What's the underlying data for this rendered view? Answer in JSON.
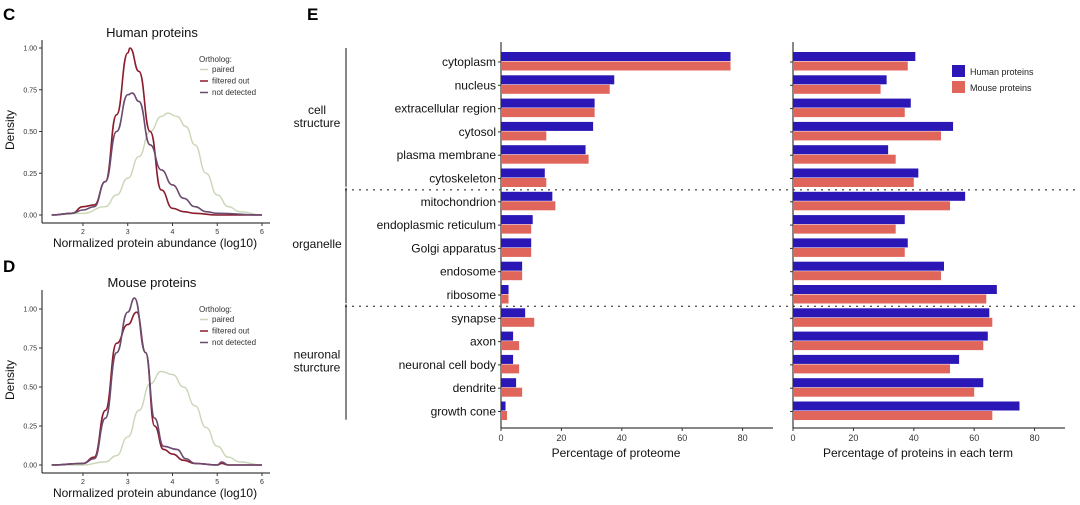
{
  "panels": {
    "c": "C",
    "d": "D",
    "e": "E"
  },
  "chart_data": [
    {
      "type": "line",
      "panel": "C",
      "title": "Human proteins",
      "xlabel": "Normalized protein abundance (log10)",
      "ylabel": "Density",
      "xlim": [
        1.3,
        6.1
      ],
      "ylim": [
        0,
        1.05
      ],
      "xticks": [
        "2",
        "3",
        "4",
        "5",
        "6"
      ],
      "yticks": [
        "0.00",
        "0.25",
        "0.50",
        "0.75",
        "1.00"
      ],
      "legend_title": "Ortholog:",
      "legend_position": "top-right",
      "grid": false,
      "series": [
        {
          "name": "paired",
          "color": "#c9d6b8",
          "x": [
            1.3,
            2,
            2.5,
            2.75,
            3,
            3.25,
            3.5,
            3.75,
            3.9,
            4.1,
            4.3,
            4.5,
            4.75,
            5,
            5.25,
            5.5,
            6
          ],
          "y": [
            0,
            0.01,
            0.05,
            0.12,
            0.22,
            0.35,
            0.5,
            0.59,
            0.61,
            0.59,
            0.53,
            0.42,
            0.25,
            0.12,
            0.05,
            0.02,
            0
          ]
        },
        {
          "name": "filtered out",
          "color": "#8b1c2c",
          "x": [
            1.3,
            1.75,
            2,
            2.25,
            2.5,
            2.75,
            3,
            3.05,
            3.25,
            3.5,
            3.75,
            4,
            4.25,
            4.5,
            5,
            6
          ],
          "y": [
            0,
            0.01,
            0.05,
            0.06,
            0.2,
            0.6,
            0.97,
            1.0,
            0.86,
            0.5,
            0.15,
            0.04,
            0.02,
            0.01,
            0,
            0
          ]
        },
        {
          "name": "not detected",
          "color": "#6a4a6e",
          "x": [
            1.3,
            1.75,
            2,
            2.25,
            2.5,
            2.75,
            3,
            3.1,
            3.25,
            3.5,
            3.75,
            4,
            4.25,
            4.5,
            4.75,
            5,
            6
          ],
          "y": [
            0,
            0.01,
            0.03,
            0.05,
            0.2,
            0.5,
            0.72,
            0.73,
            0.68,
            0.42,
            0.27,
            0.18,
            0.1,
            0.05,
            0.02,
            0.01,
            0
          ]
        }
      ]
    },
    {
      "type": "line",
      "panel": "D",
      "title": "Mouse proteins",
      "xlabel": "Normalized protein abundance (log10)",
      "ylabel": "Density",
      "xlim": [
        1.3,
        6.1
      ],
      "ylim": [
        0,
        1.1
      ],
      "xticks": [
        "2",
        "3",
        "4",
        "5",
        "6"
      ],
      "yticks": [
        "0.00",
        "0.25",
        "0.50",
        "0.75",
        "1.00"
      ],
      "legend_title": "Ortholog:",
      "legend_position": "top-right",
      "grid": false,
      "series": [
        {
          "name": "paired",
          "color": "#c9d6b8",
          "x": [
            1.3,
            2,
            2.5,
            2.75,
            3,
            3.25,
            3.5,
            3.75,
            4,
            4.25,
            4.5,
            4.75,
            5,
            5.25,
            5.5,
            6
          ],
          "y": [
            0,
            0,
            0.02,
            0.06,
            0.18,
            0.35,
            0.52,
            0.6,
            0.58,
            0.5,
            0.38,
            0.24,
            0.12,
            0.05,
            0.02,
            0
          ]
        },
        {
          "name": "filtered out",
          "color": "#8b1c2c",
          "x": [
            1.3,
            2,
            2.25,
            2.5,
            2.75,
            3,
            3.2,
            3.4,
            3.6,
            3.8,
            4,
            4.25,
            4.5,
            5,
            5.1,
            5.25,
            6
          ],
          "y": [
            0,
            0.01,
            0.05,
            0.35,
            0.78,
            0.9,
            0.98,
            0.72,
            0.25,
            0.1,
            0.07,
            0.03,
            0.01,
            0,
            0.01,
            0,
            0
          ]
        },
        {
          "name": "not detected",
          "color": "#6a4a6e",
          "x": [
            1.3,
            2,
            2.25,
            2.5,
            2.75,
            3,
            3.15,
            3.4,
            3.6,
            3.8,
            4.1,
            4.3,
            4.5,
            5,
            5.1,
            5.25,
            6
          ],
          "y": [
            0,
            0.01,
            0.04,
            0.3,
            0.72,
            0.98,
            1.07,
            0.72,
            0.3,
            0.12,
            0.1,
            0.04,
            0.01,
            0,
            0.02,
            0,
            0
          ]
        }
      ]
    },
    {
      "type": "bar",
      "panel": "E",
      "orientation": "horizontal",
      "xlabel": "Percentage of proteome",
      "xlim": [
        0,
        90
      ],
      "xticks": [
        "0",
        "20",
        "40",
        "60",
        "80"
      ],
      "categories": [
        "cytoplasm",
        "nucleus",
        "extracellular region",
        "cytosol",
        "plasma membrane",
        "cytoskeleton",
        "mitochondrion",
        "endoplasmic reticulum",
        "Golgi apparatus",
        "endosome",
        "ribosome",
        "synapse",
        "axon",
        "neuronal cell body",
        "dendrite",
        "growth cone"
      ],
      "groups": [
        {
          "label": "cell structure",
          "lines": [
            "cell",
            "structure"
          ],
          "count": 6
        },
        {
          "label": "organelle",
          "lines": [
            "organelle"
          ],
          "count": 5
        },
        {
          "label": "neuronal sturcture",
          "lines": [
            "neuronal",
            "sturcture"
          ],
          "count": 5
        }
      ],
      "series": [
        {
          "name": "Human proteins",
          "color": "#2a17b5",
          "values": [
            76,
            37.5,
            31,
            30.5,
            28,
            14.5,
            17,
            10.5,
            10,
            7,
            2.5,
            8,
            4,
            4,
            5,
            1.5
          ]
        },
        {
          "name": "Mouse proteins",
          "color": "#e0655a",
          "values": [
            76,
            36,
            31,
            15,
            29,
            15,
            18,
            10,
            10,
            7,
            2.5,
            11,
            6,
            6,
            7,
            2
          ]
        }
      ]
    },
    {
      "type": "bar",
      "panel": "E",
      "orientation": "horizontal",
      "xlabel": "Percentage of proteins in each term",
      "xlim": [
        0,
        90
      ],
      "xticks": [
        "0",
        "20",
        "40",
        "60",
        "80"
      ],
      "legend_position": "top-right",
      "categories": [
        "cytoplasm",
        "nucleus",
        "extracellular region",
        "cytosol",
        "plasma membrane",
        "cytoskeleton",
        "mitochondrion",
        "endoplasmic reticulum",
        "Golgi apparatus",
        "endosome",
        "ribosome",
        "synapse",
        "axon",
        "neuronal cell body",
        "dendrite",
        "growth cone"
      ],
      "series": [
        {
          "name": "Human proteins",
          "color": "#2a17b5",
          "values": [
            40.5,
            31,
            39,
            53,
            31.5,
            41.5,
            57,
            37,
            38,
            50,
            67.5,
            65,
            64.5,
            55,
            63,
            75
          ]
        },
        {
          "name": "Mouse proteins",
          "color": "#e0655a",
          "values": [
            38,
            29,
            37,
            49,
            34,
            40,
            52,
            34,
            37,
            49,
            64,
            66,
            63,
            52,
            60,
            66
          ]
        }
      ]
    }
  ]
}
